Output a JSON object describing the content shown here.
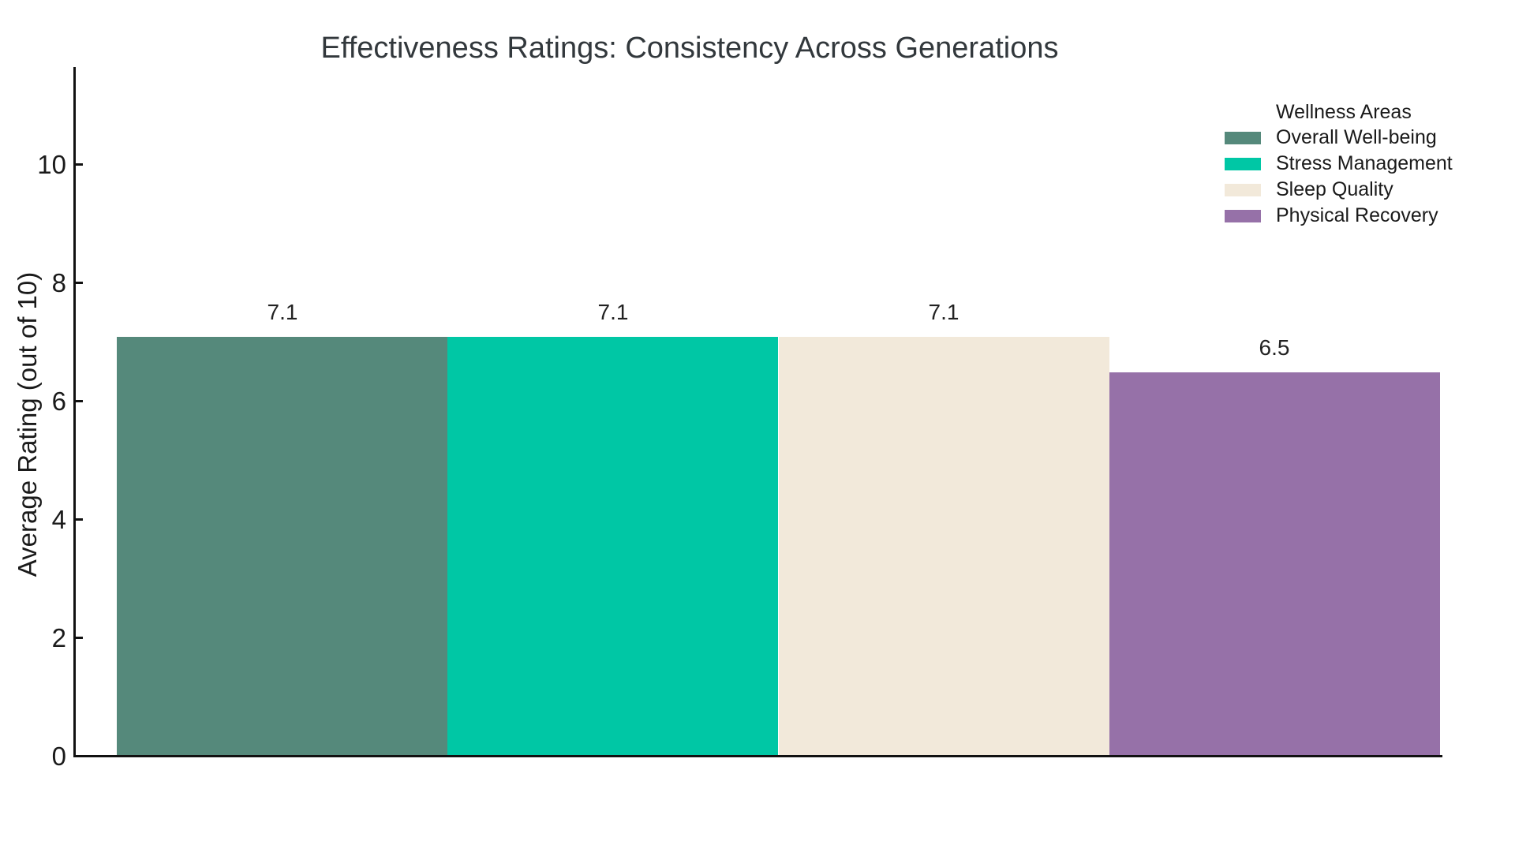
{
  "chart_data": {
    "type": "bar",
    "title": "Effectiveness Ratings: Consistency Across Generations",
    "xlabel": "",
    "ylabel": "Average Rating (out of 10)",
    "ylim": [
      0,
      11.65
    ],
    "yticks": [
      0,
      2,
      4,
      6,
      8,
      10
    ],
    "grid": false,
    "x_tick_labels_visible": false,
    "legend_title": "Wellness Areas",
    "legend_position": "top-right",
    "series": [
      {
        "name": "Overall Well-being",
        "value": 7.1,
        "value_label": "7.1",
        "color": "#55897B"
      },
      {
        "name": "Stress Management",
        "value": 7.1,
        "value_label": "7.1",
        "color": "#00C7A5"
      },
      {
        "name": "Sleep Quality",
        "value": 7.1,
        "value_label": "7.1",
        "color": "#F2E9DA"
      },
      {
        "name": "Physical Recovery",
        "value": 6.5,
        "value_label": "6.5",
        "color": "#9671A8"
      }
    ]
  }
}
